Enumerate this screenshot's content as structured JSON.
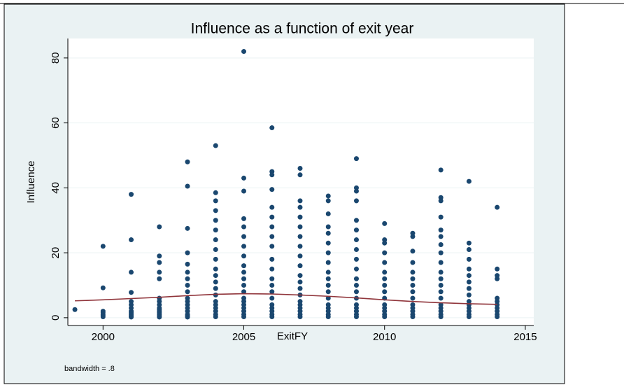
{
  "chart_data": {
    "type": "scatter",
    "title": "Influence as a function of exit year",
    "xlabel": "ExitFY",
    "ylabel": "Influence",
    "note": "bandwidth = .8",
    "xlim": [
      1998.75,
      2015.3
    ],
    "ylim": [
      -2.4,
      86
    ],
    "xticks": [
      2000,
      2005,
      2010,
      2015
    ],
    "yticks": [
      0,
      20,
      40,
      60,
      80
    ],
    "grid": true,
    "series": [
      {
        "color": "#1a476f",
        "x": [
          1999,
          2000,
          2000,
          2000,
          2000,
          2000,
          2000,
          2001,
          2001,
          2001,
          2001,
          2001,
          2001,
          2001,
          2001,
          2001,
          2001,
          2001,
          2001,
          2002,
          2002,
          2002,
          2002,
          2002,
          2002,
          2002,
          2002,
          2002,
          2002,
          2002,
          2002,
          2002,
          2002,
          2002,
          2003,
          2003,
          2003,
          2003,
          2003,
          2003,
          2003,
          2003,
          2003,
          2003,
          2003,
          2003,
          2003,
          2003,
          2003,
          2003,
          2003,
          2004,
          2004,
          2004,
          2004,
          2004,
          2004,
          2004,
          2004,
          2004,
          2004,
          2004,
          2004,
          2004,
          2004,
          2004,
          2004,
          2004,
          2004,
          2004,
          2004,
          2005,
          2005,
          2005,
          2005,
          2005,
          2005,
          2005,
          2005,
          2005,
          2005,
          2005,
          2005,
          2005,
          2005,
          2005,
          2005,
          2005,
          2005,
          2005,
          2005,
          2006,
          2006,
          2006,
          2006,
          2006,
          2006,
          2006,
          2006,
          2006,
          2006,
          2006,
          2006,
          2006,
          2006,
          2006,
          2006,
          2006,
          2006,
          2006,
          2006,
          2007,
          2007,
          2007,
          2007,
          2007,
          2007,
          2007,
          2007,
          2007,
          2007,
          2007,
          2007,
          2007,
          2007,
          2007,
          2007,
          2007,
          2007,
          2007,
          2007,
          2008,
          2008,
          2008,
          2008,
          2008,
          2008,
          2008,
          2008,
          2008,
          2008,
          2008,
          2008,
          2008,
          2008,
          2008,
          2008,
          2008,
          2008,
          2009,
          2009,
          2009,
          2009,
          2009,
          2009,
          2009,
          2009,
          2009,
          2009,
          2009,
          2009,
          2009,
          2009,
          2009,
          2009,
          2009,
          2009,
          2009,
          2010,
          2010,
          2010,
          2010,
          2010,
          2010,
          2010,
          2010,
          2010,
          2010,
          2010,
          2010,
          2010,
          2010,
          2010,
          2011,
          2011,
          2011,
          2011,
          2011,
          2011,
          2011,
          2011,
          2011,
          2011,
          2011,
          2011,
          2011,
          2011,
          2012,
          2012,
          2012,
          2012,
          2012,
          2012,
          2012,
          2012,
          2012,
          2012,
          2012,
          2012,
          2012,
          2012,
          2012,
          2012,
          2012,
          2012,
          2012,
          2013,
          2013,
          2013,
          2013,
          2013,
          2013,
          2013,
          2013,
          2013,
          2013,
          2013,
          2013,
          2013,
          2013,
          2013,
          2014,
          2014,
          2014,
          2014,
          2014,
          2014,
          2014,
          2014,
          2014,
          2014,
          2014
        ],
        "values": [
          2.5,
          22,
          9.2,
          2,
          1.5,
          0.8,
          0.3,
          38,
          24,
          14,
          7.8,
          5,
          4,
          3,
          2,
          1.5,
          1,
          0.5,
          0.2,
          28,
          19,
          17,
          14,
          12,
          6,
          5,
          4,
          3,
          2.5,
          2,
          1.5,
          1,
          0.5,
          0.2,
          48,
          40.5,
          27.5,
          20,
          16.5,
          14,
          12,
          10,
          8,
          6,
          5,
          4,
          3,
          2,
          1,
          0.5,
          0.2,
          53,
          38.5,
          36,
          33,
          30,
          27,
          24,
          21,
          18,
          15,
          13,
          11,
          9,
          7,
          5,
          4,
          3,
          2,
          1,
          0.3,
          82,
          43,
          39,
          30.5,
          28,
          25,
          22,
          19,
          16,
          14,
          12,
          10,
          8,
          6,
          5,
          4,
          3,
          2,
          1,
          0.3,
          58.5,
          45,
          44,
          39.5,
          34,
          31,
          28,
          25,
          22,
          18,
          15,
          12,
          10,
          8,
          6,
          4,
          3,
          2,
          1,
          0.3,
          46,
          44,
          36,
          34,
          31,
          28,
          25,
          22,
          19,
          16,
          13,
          11,
          9,
          7,
          5,
          4,
          3,
          2,
          1,
          0.3,
          37.5,
          36,
          32,
          28,
          26,
          23,
          20,
          17,
          14,
          12,
          10,
          8,
          6,
          4,
          3,
          2,
          1,
          0.3,
          49,
          40,
          39,
          36,
          30,
          27,
          24,
          21,
          18,
          15,
          12,
          10,
          8,
          6,
          4,
          3,
          2,
          1,
          0.3,
          29,
          24,
          23,
          20,
          17,
          14,
          12,
          10,
          8,
          6,
          4,
          3,
          2,
          1,
          0.3,
          26,
          25,
          20.5,
          17,
          14,
          12,
          10,
          8,
          6,
          4,
          3,
          2,
          1,
          0.3,
          45.5,
          37,
          36,
          31,
          27,
          25,
          22.5,
          20,
          17,
          14,
          12,
          10,
          8,
          6,
          4,
          3,
          2,
          1,
          0.3,
          42,
          23,
          21,
          18,
          15,
          13,
          11,
          9,
          7,
          5,
          4,
          3,
          2,
          1,
          0.3,
          34,
          15,
          13,
          12,
          6,
          5,
          4,
          3,
          2,
          1,
          0.3
        ]
      }
    ],
    "fit": {
      "color": "#90353b",
      "x": [
        1999,
        2000,
        2001,
        2002,
        2003,
        2004,
        2005,
        2006,
        2007,
        2008,
        2009,
        2010,
        2011,
        2012,
        2013,
        2014
      ],
      "values": [
        5.2,
        5.5,
        5.9,
        6.3,
        6.8,
        7.2,
        7.4,
        7.3,
        7.0,
        6.6,
        6.1,
        5.5,
        5.0,
        4.6,
        4.3,
        4.1
      ]
    }
  }
}
